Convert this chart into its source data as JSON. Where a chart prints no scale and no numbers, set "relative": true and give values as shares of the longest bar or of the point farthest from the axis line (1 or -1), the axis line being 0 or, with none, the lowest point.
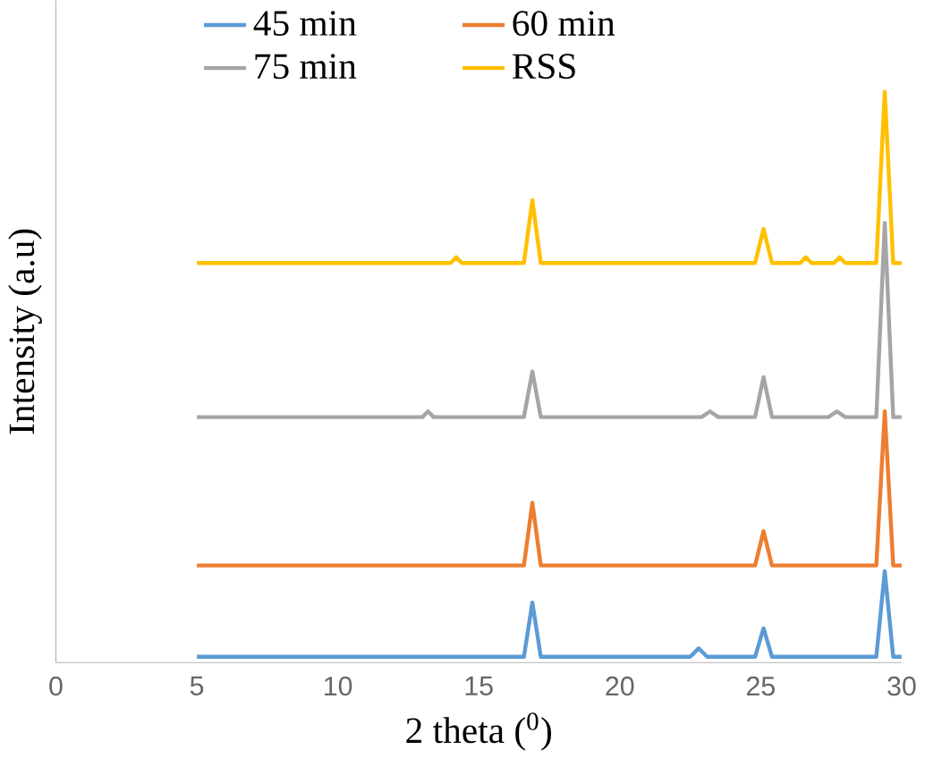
{
  "chart_data": {
    "type": "line",
    "relative": true,
    "xlabel": "2 theta ($^{0}$)",
    "ylabel": "Intensity (a.u)",
    "xlim": [
      0,
      30
    ],
    "xticks": [
      0,
      5,
      10,
      15,
      20,
      25,
      30
    ],
    "legend": "top",
    "marker": "none",
    "line_style": "solid",
    "series": [
      {
        "name": "45 min",
        "color": "#5b9bd5",
        "x": [
          5,
          16.6,
          16.9,
          17.2,
          22.5,
          22.8,
          23.1,
          24.8,
          25.1,
          25.4,
          29.1,
          29.4,
          29.7,
          30
        ],
        "values": [
          0.01,
          0.01,
          0.105,
          0.01,
          0.01,
          0.025,
          0.01,
          0.01,
          0.06,
          0.01,
          0.01,
          0.16,
          0.01,
          0.01
        ]
      },
      {
        "name": "60 min",
        "color": "#ed7d31",
        "x": [
          5,
          16.6,
          16.9,
          17.2,
          24.8,
          25.1,
          25.4,
          29.1,
          29.4,
          29.7,
          30
        ],
        "values": [
          0.17,
          0.17,
          0.28,
          0.17,
          0.17,
          0.23,
          0.17,
          0.17,
          0.44,
          0.17,
          0.17
        ]
      },
      {
        "name": "75 min",
        "color": "#a5a5a5",
        "x": [
          5,
          13,
          13.2,
          13.4,
          16.6,
          16.9,
          17.2,
          22.9,
          23.2,
          23.5,
          24.8,
          25.1,
          25.4,
          27.4,
          27.7,
          28,
          29.1,
          29.4,
          29.7,
          30
        ],
        "values": [
          0.43,
          0.43,
          0.44,
          0.43,
          0.43,
          0.51,
          0.43,
          0.43,
          0.44,
          0.43,
          0.43,
          0.5,
          0.43,
          0.43,
          0.44,
          0.43,
          0.43,
          0.77,
          0.43,
          0.43
        ]
      },
      {
        "name": "RSS",
        "color": "#ffc000",
        "x": [
          5,
          14,
          14.2,
          14.4,
          16.6,
          16.9,
          17.2,
          24.8,
          25.1,
          25.4,
          26.4,
          26.6,
          26.8,
          27.6,
          27.8,
          28,
          29.1,
          29.4,
          29.7,
          30
        ],
        "values": [
          0.7,
          0.7,
          0.71,
          0.7,
          0.7,
          0.81,
          0.7,
          0.7,
          0.76,
          0.7,
          0.7,
          0.71,
          0.7,
          0.7,
          0.71,
          0.7,
          0.7,
          1,
          0.7,
          0.7
        ]
      }
    ]
  }
}
